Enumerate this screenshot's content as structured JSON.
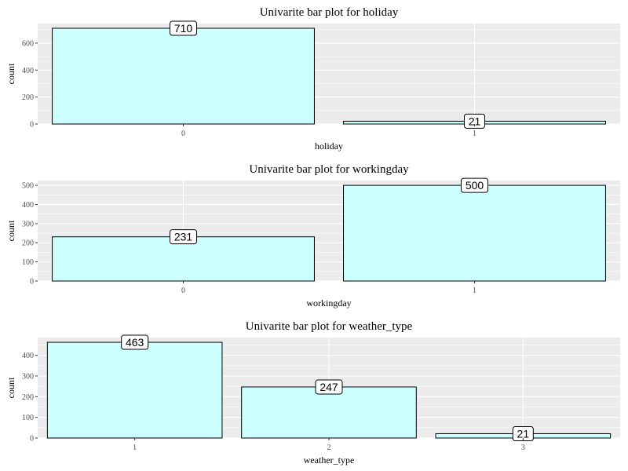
{
  "chart_data": [
    {
      "type": "bar",
      "title": "Univarite bar plot for holiday",
      "xlabel": "holiday",
      "ylabel": "count",
      "categories": [
        "0",
        "1"
      ],
      "values": [
        710,
        21
      ],
      "ylim": [
        0,
        745
      ],
      "yticks": [
        0,
        200,
        400,
        600
      ],
      "grid": true,
      "colors": {
        "bar_fill": "#ccffff",
        "bar_stroke": "#000000",
        "panel_bg": "#ebebeb",
        "grid": "#ffffff"
      }
    },
    {
      "type": "bar",
      "title": "Univarite bar plot for workingday",
      "xlabel": "workingday",
      "ylabel": "count",
      "categories": [
        "0",
        "1"
      ],
      "values": [
        231,
        500
      ],
      "ylim": [
        0,
        525
      ],
      "yticks": [
        0,
        100,
        200,
        300,
        400,
        500
      ],
      "grid": true,
      "colors": {
        "bar_fill": "#ccffff",
        "bar_stroke": "#000000",
        "panel_bg": "#ebebeb",
        "grid": "#ffffff"
      }
    },
    {
      "type": "bar",
      "title": "Univarite bar plot for weather_type",
      "xlabel": "weather_type",
      "ylabel": "count",
      "categories": [
        "1",
        "2",
        "3"
      ],
      "values": [
        463,
        247,
        21
      ],
      "ylim": [
        0,
        486
      ],
      "yticks": [
        0,
        100,
        200,
        300,
        400
      ],
      "grid": true,
      "colors": {
        "bar_fill": "#ccffff",
        "bar_stroke": "#000000",
        "panel_bg": "#ebebeb",
        "grid": "#ffffff"
      }
    }
  ]
}
